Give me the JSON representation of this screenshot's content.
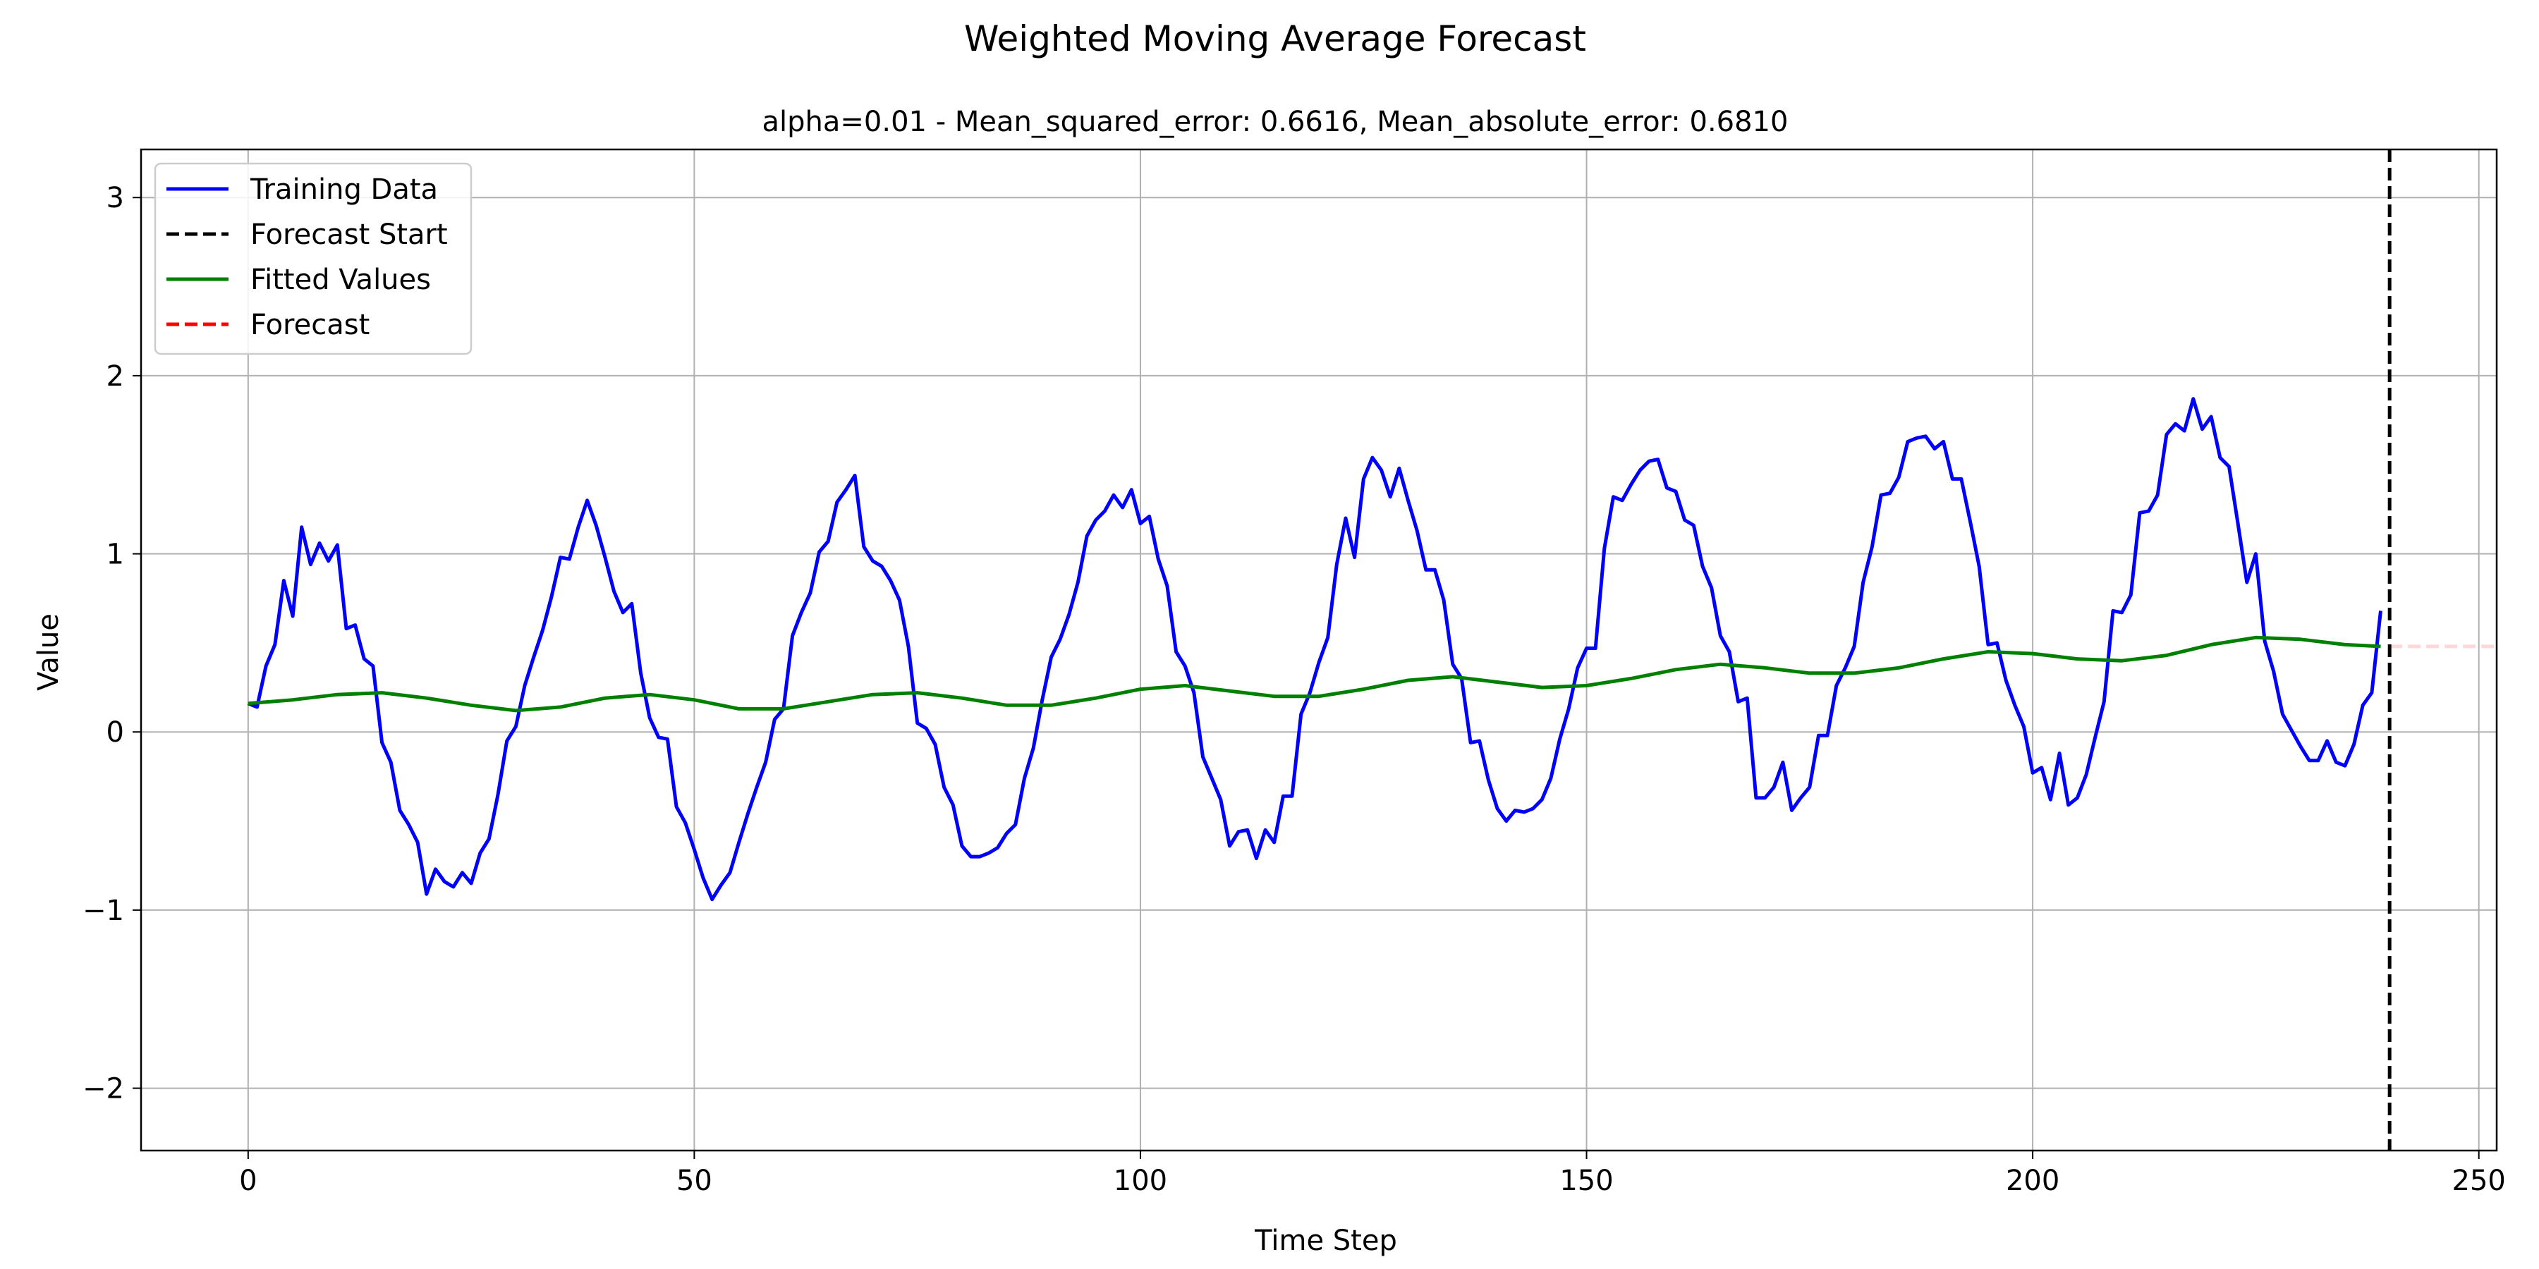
{
  "chart_data": {
    "type": "line",
    "suptitle": "Weighted Moving Average Forecast",
    "title": "alpha=0.01 - Mean_squared_error: 0.6616, Mean_absolute_error: 0.6810",
    "xlabel": "Time Step",
    "ylabel": "Value",
    "xlim": [
      -12,
      252
    ],
    "ylim": [
      -2.35,
      3.27
    ],
    "xticks": [
      0,
      50,
      100,
      150,
      200,
      250
    ],
    "yticks": [
      -2,
      -1,
      0,
      1,
      2,
      3
    ],
    "grid": true,
    "legend": {
      "placement": "top-left",
      "entries": [
        "Training Data",
        "Forecast Start",
        "Fitted Values",
        "Forecast"
      ]
    },
    "series": [
      {
        "name": "Training Data",
        "color": "#0000ff",
        "style": "solid",
        "x": [
          0,
          1,
          2,
          3,
          4,
          5,
          6,
          7,
          8,
          9,
          10,
          11,
          12,
          13,
          14,
          15,
          16,
          17,
          18,
          19,
          20,
          21,
          22,
          23,
          24,
          25,
          26,
          27,
          28,
          29,
          30,
          31,
          32,
          33,
          34,
          35,
          36,
          37,
          38,
          39,
          40,
          41,
          42,
          43,
          44,
          45,
          46,
          47,
          48,
          49,
          50,
          51,
          52,
          53,
          54,
          55,
          56,
          57,
          58,
          59,
          60,
          61,
          62,
          63,
          64,
          65,
          66,
          67,
          68,
          69,
          70,
          71,
          72,
          73,
          74,
          75,
          76,
          77,
          78,
          79,
          80,
          81,
          82,
          83,
          84,
          85,
          86,
          87,
          88,
          89,
          90,
          91,
          92,
          93,
          94,
          95,
          96,
          97,
          98,
          99,
          100,
          101,
          102,
          103,
          104,
          105,
          106,
          107,
          108,
          109,
          110,
          111,
          112,
          113,
          114,
          115,
          116,
          117,
          118,
          119,
          120,
          121,
          122,
          123,
          124,
          125,
          126,
          127,
          128,
          129,
          130,
          131,
          132,
          133,
          134,
          135,
          136,
          137,
          138,
          139,
          140,
          141,
          142,
          143,
          144,
          145,
          146,
          147,
          148,
          149,
          150,
          151,
          152,
          153,
          154,
          155,
          156,
          157,
          158,
          159,
          160,
          161,
          162,
          163,
          164,
          165,
          166,
          167,
          168,
          169,
          170,
          171,
          172,
          173,
          174,
          175,
          176,
          177,
          178,
          179,
          180,
          181,
          182,
          183,
          184,
          185,
          186,
          187,
          188,
          189,
          190,
          191,
          192,
          193,
          194,
          195,
          196,
          197,
          198,
          199,
          200,
          201,
          202,
          203,
          204,
          205,
          206,
          207,
          208,
          209,
          210,
          211,
          212,
          213,
          214,
          215,
          216,
          217,
          218,
          219,
          220,
          221,
          222,
          223,
          224,
          225,
          226,
          227,
          228,
          229,
          230,
          231,
          232,
          233,
          234,
          235,
          236,
          237,
          238,
          239
        ],
        "y": [
          0.16,
          0.14,
          0.37,
          0.49,
          0.85,
          0.65,
          1.15,
          0.94,
          1.06,
          0.96,
          1.05,
          0.58,
          0.6,
          0.41,
          0.37,
          -0.06,
          -0.17,
          -0.44,
          -0.52,
          -0.62,
          -0.91,
          -0.77,
          -0.84,
          -0.87,
          -0.79,
          -0.85,
          -0.68,
          -0.6,
          -0.35,
          -0.05,
          0.03,
          0.26,
          0.42,
          0.57,
          0.76,
          0.98,
          0.97,
          1.15,
          1.3,
          1.16,
          0.98,
          0.79,
          0.67,
          0.72,
          0.33,
          0.08,
          -0.03,
          -0.04,
          -0.42,
          -0.51,
          -0.66,
          -0.82,
          -0.94,
          -0.86,
          -0.79,
          -0.62,
          -0.46,
          -0.31,
          -0.17,
          0.07,
          0.13,
          0.54,
          0.67,
          0.78,
          1.01,
          1.07,
          1.29,
          1.36,
          1.44,
          1.04,
          0.96,
          0.93,
          0.85,
          0.74,
          0.48,
          0.05,
          0.02,
          -0.07,
          -0.31,
          -0.41,
          -0.64,
          -0.7,
          -0.7,
          -0.68,
          -0.65,
          -0.57,
          -0.52,
          -0.26,
          -0.09,
          0.18,
          0.42,
          0.52,
          0.66,
          0.84,
          1.1,
          1.19,
          1.24,
          1.33,
          1.26,
          1.36,
          1.17,
          1.21,
          0.97,
          0.82,
          0.45,
          0.37,
          0.22,
          -0.14,
          -0.26,
          -0.38,
          -0.64,
          -0.56,
          -0.55,
          -0.71,
          -0.55,
          -0.62,
          -0.36,
          -0.36,
          0.1,
          0.22,
          0.39,
          0.53,
          0.94,
          1.2,
          0.98,
          1.42,
          1.54,
          1.47,
          1.32,
          1.48,
          1.3,
          1.13,
          0.91,
          0.91,
          0.74,
          0.38,
          0.3,
          -0.06,
          -0.05,
          -0.27,
          -0.43,
          -0.5,
          -0.44,
          -0.45,
          -0.43,
          -0.38,
          -0.26,
          -0.04,
          0.13,
          0.36,
          0.47,
          0.47,
          1.03,
          1.32,
          1.3,
          1.39,
          1.47,
          1.52,
          1.53,
          1.37,
          1.35,
          1.19,
          1.16,
          0.93,
          0.81,
          0.54,
          0.45,
          0.17,
          0.19,
          -0.37,
          -0.37,
          -0.31,
          -0.17,
          -0.44,
          -0.37,
          -0.31,
          -0.02,
          -0.02,
          0.26,
          0.36,
          0.48,
          0.84,
          1.04,
          1.33,
          1.34,
          1.43,
          1.63,
          1.65,
          1.66,
          1.59,
          1.63,
          1.42,
          1.42,
          1.18,
          0.93,
          0.49,
          0.5,
          0.29,
          0.15,
          0.03,
          -0.23,
          -0.2,
          -0.38,
          -0.12,
          -0.41,
          -0.37,
          -0.24,
          -0.03,
          0.17,
          0.68,
          0.67,
          0.77,
          1.23,
          1.24,
          1.33,
          1.67,
          1.73,
          1.69,
          1.87,
          1.7,
          1.77,
          1.54,
          1.49,
          1.17,
          0.84,
          1.0,
          0.51,
          0.34,
          0.1,
          0.01,
          -0.08,
          -0.16,
          -0.16,
          -0.05,
          -0.17,
          -0.19,
          -0.07,
          0.15,
          0.22,
          0.68
        ]
      },
      {
        "name": "Fitted Values",
        "color": "#008000",
        "style": "solid",
        "x": [
          0,
          5,
          10,
          15,
          20,
          25,
          30,
          35,
          40,
          45,
          50,
          55,
          60,
          65,
          70,
          75,
          80,
          85,
          90,
          95,
          100,
          105,
          110,
          115,
          120,
          125,
          130,
          135,
          140,
          145,
          150,
          155,
          160,
          165,
          170,
          175,
          180,
          185,
          190,
          195,
          200,
          205,
          210,
          215,
          220,
          225,
          230,
          235,
          239
        ],
        "y": [
          0.16,
          0.18,
          0.21,
          0.22,
          0.19,
          0.15,
          0.12,
          0.14,
          0.19,
          0.21,
          0.18,
          0.13,
          0.13,
          0.17,
          0.21,
          0.22,
          0.19,
          0.15,
          0.15,
          0.19,
          0.24,
          0.26,
          0.23,
          0.2,
          0.2,
          0.24,
          0.29,
          0.31,
          0.28,
          0.25,
          0.26,
          0.3,
          0.35,
          0.38,
          0.36,
          0.33,
          0.33,
          0.36,
          0.41,
          0.45,
          0.44,
          0.41,
          0.4,
          0.43,
          0.49,
          0.53,
          0.52,
          0.49,
          0.48
        ]
      },
      {
        "name": "Forecast",
        "color": "#ff0000",
        "style": "dashed",
        "alpha": 0.15,
        "x": [
          240,
          252
        ],
        "y": [
          0.48,
          0.48
        ]
      }
    ],
    "vline": {
      "name": "Forecast Start",
      "x": 240,
      "color": "#000000",
      "style": "dashed"
    }
  }
}
